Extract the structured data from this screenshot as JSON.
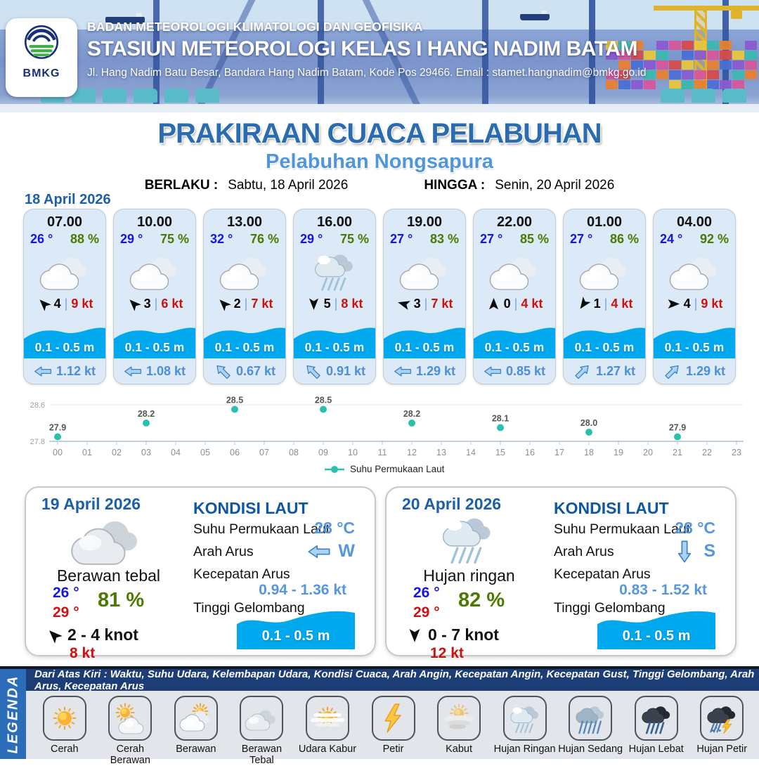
{
  "header": {
    "logo_text": "BMKG",
    "org_name": "BADAN METEOROLOGI KLIMATOLOGI DAN GEOFISIKA",
    "station_name": "STASIUN METEOROLOGI KELAS I HANG NADIM BATAM",
    "address": "Jl. Hang Nadim Batu Besar, Bandara Hang Nadim Batam, Kode Pos 29466. Email : stamet.hangnadim@bmkg.go.id"
  },
  "title": {
    "main": "PRAKIRAAN CUACA PELABUHAN",
    "subtitle": "Pelabuhan Nongsapura"
  },
  "validity": {
    "from_label": "BERLAKU :",
    "from_value": "Sabtu, 18 April 2026",
    "to_label": "HINGGA :",
    "to_value": "Senin, 20 April 2026"
  },
  "hourly": {
    "date": "18 April 2026",
    "cards": [
      {
        "time": "07.00",
        "temp": "26 °",
        "humidity": "88 %",
        "weather_icon": "berawan",
        "wind_deg": 315,
        "wind_speed": "4",
        "wind_gust": "9 kt",
        "wave_height": "0.1 - 0.5 m",
        "current_deg": 270,
        "current_speed": "1.12 kt"
      },
      {
        "time": "10.00",
        "temp": "29 °",
        "humidity": "75 %",
        "weather_icon": "berawan",
        "wind_deg": 315,
        "wind_speed": "3",
        "wind_gust": "6 kt",
        "wave_height": "0.1 - 0.5 m",
        "current_deg": 270,
        "current_speed": "1.08 kt"
      },
      {
        "time": "13.00",
        "temp": "32 °",
        "humidity": "76 %",
        "weather_icon": "berawan",
        "wind_deg": 315,
        "wind_speed": "2",
        "wind_gust": "7 kt",
        "wave_height": "0.1 - 0.5 m",
        "current_deg": 315,
        "current_speed": "0.67 kt"
      },
      {
        "time": "16.00",
        "temp": "29 °",
        "humidity": "75 %",
        "weather_icon": "hujan-ringan",
        "wind_deg": 180,
        "wind_speed": "5",
        "wind_gust": "8 kt",
        "wave_height": "0.1 - 0.5 m",
        "current_deg": 315,
        "current_speed": "0.91 kt"
      },
      {
        "time": "19.00",
        "temp": "27 °",
        "humidity": "83 %",
        "weather_icon": "berawan",
        "wind_deg": 285,
        "wind_speed": "3",
        "wind_gust": "7 kt",
        "wave_height": "0.1 - 0.5 m",
        "current_deg": 270,
        "current_speed": "1.29 kt"
      },
      {
        "time": "22.00",
        "temp": "27 °",
        "humidity": "85 %",
        "weather_icon": "berawan",
        "wind_deg": 0,
        "wind_speed": "0",
        "wind_gust": "4 kt",
        "wave_height": "0.1 - 0.5 m",
        "current_deg": 270,
        "current_speed": "0.85 kt"
      },
      {
        "time": "01.00",
        "temp": "27 °",
        "humidity": "86 %",
        "weather_icon": "berawan",
        "wind_deg": 215,
        "wind_speed": "1",
        "wind_gust": "4 kt",
        "wave_height": "0.1 - 0.5 m",
        "current_deg": 45,
        "current_speed": "1.27 kt"
      },
      {
        "time": "04.00",
        "temp": "24 °",
        "humidity": "92 %",
        "weather_icon": "berawan",
        "wind_deg": 90,
        "wind_speed": "4",
        "wind_gust": "9 kt",
        "wave_height": "0.1 - 0.5 m",
        "current_deg": 45,
        "current_speed": "1.29 kt"
      }
    ]
  },
  "chart_data": {
    "type": "scatter",
    "title": "",
    "xlabel": "",
    "ylabel": "",
    "legend": "Suhu Permukaan Laut",
    "legend_position": "bottom-center",
    "grid": true,
    "ylim": [
      27.8,
      28.6
    ],
    "y_tick_labels": [
      "27.8",
      "28.6"
    ],
    "x_tick_labels": [
      "00",
      "01",
      "02",
      "03",
      "04",
      "05",
      "06",
      "07",
      "08",
      "09",
      "10",
      "11",
      "12",
      "13",
      "14",
      "15",
      "16",
      "17",
      "18",
      "19",
      "20",
      "21",
      "22",
      "23"
    ],
    "series": [
      {
        "name": "Suhu Permukaan Laut",
        "x": [
          0,
          3,
          6,
          9,
          12,
          15,
          18,
          21
        ],
        "values": [
          27.9,
          28.2,
          28.5,
          28.5,
          28.2,
          28.1,
          28.0,
          27.9
        ]
      }
    ],
    "point_color": "#29c0ae"
  },
  "daily": [
    {
      "date": "19 April 2026",
      "condition": "Berawan tebal",
      "weather_icon": "berawan-tebal",
      "temp_min": "26 °",
      "temp_max": "29 °",
      "humidity": "81 %",
      "wind_deg": 315,
      "wind_range": "2 - 4 knot",
      "wind_gust": "8 kt",
      "sea": {
        "heading": "KONDISI LAUT",
        "sst_label": "Suhu Permukaan Laut",
        "sst_value": "28 °C",
        "current_dir_label": "Arah Arus",
        "current_dir_deg": 270,
        "current_dir_text": "W",
        "current_speed_label": "Kecepatan Arus",
        "current_speed_value": "0.94 - 1.36 kt",
        "wave_label": "Tinggi Gelombang",
        "wave_value": "0.1 - 0.5 m"
      }
    },
    {
      "date": "20 April 2026",
      "condition": "Hujan ringan",
      "weather_icon": "hujan-ringan",
      "temp_min": "26 °",
      "temp_max": "29 °",
      "humidity": "82 %",
      "wind_deg": 180,
      "wind_range": "0 - 7 knot",
      "wind_gust": "12 kt",
      "sea": {
        "heading": "KONDISI LAUT",
        "sst_label": "Suhu Permukaan Laut",
        "sst_value": "28 °C",
        "current_dir_label": "Arah Arus",
        "current_dir_deg": 180,
        "current_dir_text": "S",
        "current_speed_label": "Kecepatan Arus",
        "current_speed_value": "0.83 - 1.52 kt",
        "wave_label": "Tinggi Gelombang",
        "wave_value": "0.1 - 0.5 m"
      }
    }
  ],
  "legend_section": {
    "side_label": "LEGENDA",
    "note": "Dari Atas Kiri : Waktu, Suhu Udara, Kelembapan Udara, Kondisi Cuaca, Arah Angin, Kecepatan Angin, Kecepatan Gust, Tinggi Gelombang, Arah Arus, Kecepatan Arus",
    "items": [
      {
        "label": "Cerah",
        "icon": "cerah"
      },
      {
        "label": "Cerah Berawan",
        "icon": "cerah-berawan"
      },
      {
        "label": "Berawan",
        "icon": "berawan-matahari"
      },
      {
        "label": "Berawan Tebal",
        "icon": "berawan-tebal"
      },
      {
        "label": "Udara Kabur",
        "icon": "udara-kabur"
      },
      {
        "label": "Petir",
        "icon": "petir"
      },
      {
        "label": "Kabut",
        "icon": "kabut"
      },
      {
        "label": "Hujan Ringan",
        "icon": "hujan-ringan"
      },
      {
        "label": "Hujan Sedang",
        "icon": "hujan-sedang"
      },
      {
        "label": "Hujan Lebat",
        "icon": "hujan-lebat"
      },
      {
        "label": "Hujan Petir",
        "icon": "hujan-petir"
      }
    ]
  },
  "colors": {
    "accent_heading_blue": "#1c5fa9",
    "temp_blue": "#1616e0",
    "humidity_green": "#4a7a00",
    "gust_red": "#cc1111",
    "wave_band_blue": "#00a9ee",
    "sea_value_blue": "#5596dd",
    "chart_point_teal": "#29c0ae",
    "legend_note_navy": "#1c3d75",
    "legenda_strip_blue": "#2b6db8"
  }
}
